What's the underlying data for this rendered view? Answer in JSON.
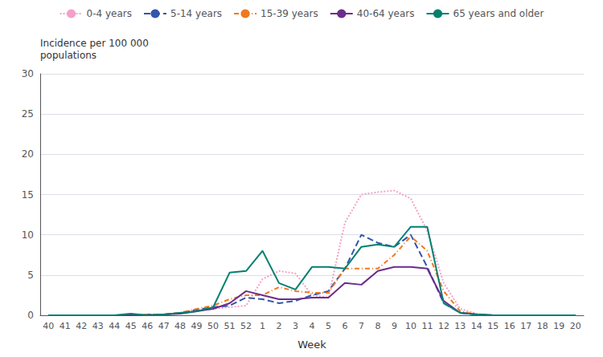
{
  "chart_data": {
    "type": "line",
    "xlabel": "Week",
    "ylabel": "Incidence per 100 000\npopulations",
    "categories": [
      "40",
      "41",
      "42",
      "43",
      "44",
      "45",
      "46",
      "47",
      "48",
      "49",
      "50",
      "51",
      "52",
      "1",
      "2",
      "3",
      "4",
      "5",
      "6",
      "7",
      "8",
      "9",
      "10",
      "11",
      "12",
      "13",
      "14",
      "15",
      "16",
      "17",
      "18",
      "19",
      "20"
    ],
    "series": [
      {
        "name": "0-4 years",
        "color": "#f4a0c8",
        "line_style": "dotted",
        "values": [
          0.0,
          0.0,
          0.0,
          0.0,
          0.0,
          0.1,
          0.0,
          0.1,
          0.2,
          0.5,
          0.8,
          1.0,
          1.2,
          4.5,
          5.5,
          5.2,
          2.5,
          2.2,
          11.5,
          15.0,
          15.3,
          15.5,
          14.5,
          10.5,
          4.0,
          0.8,
          0.2,
          0.0,
          0.0,
          0.0,
          0.0,
          0.0,
          0.0
        ]
      },
      {
        "name": "5-14 years",
        "color": "#3355aa",
        "line_style": "dashed",
        "values": [
          0.0,
          0.0,
          0.0,
          0.0,
          0.0,
          0.0,
          0.1,
          0.1,
          0.3,
          0.7,
          1.0,
          1.2,
          2.2,
          2.0,
          1.5,
          1.8,
          2.5,
          3.0,
          5.8,
          10.0,
          9.0,
          8.5,
          10.0,
          6.0,
          1.5,
          0.3,
          0.1,
          0.0,
          0.0,
          0.0,
          0.0,
          0.0,
          0.0
        ]
      },
      {
        "name": "15-39 years",
        "color": "#f07820",
        "line_style": "dashdot",
        "values": [
          0.0,
          0.0,
          0.0,
          0.0,
          0.0,
          0.0,
          0.1,
          0.1,
          0.3,
          0.8,
          1.2,
          2.0,
          2.5,
          2.5,
          3.5,
          3.0,
          2.8,
          2.8,
          5.8,
          5.8,
          5.8,
          7.5,
          9.8,
          8.0,
          3.0,
          0.5,
          0.1,
          0.0,
          0.0,
          0.0,
          0.0,
          0.0,
          0.0
        ]
      },
      {
        "name": "40-64 years",
        "color": "#6b2d8b",
        "line_style": "solid",
        "values": [
          0.0,
          0.0,
          0.0,
          0.0,
          0.0,
          0.0,
          0.0,
          0.1,
          0.2,
          0.5,
          0.8,
          1.5,
          3.0,
          2.5,
          2.0,
          2.0,
          2.2,
          2.2,
          4.0,
          3.8,
          5.5,
          6.0,
          6.0,
          5.8,
          1.8,
          0.3,
          0.1,
          0.0,
          0.0,
          0.0,
          0.0,
          0.0,
          0.0
        ]
      },
      {
        "name": "65 years and older",
        "color": "#008070",
        "line_style": "solid",
        "values": [
          0.0,
          0.0,
          0.0,
          0.0,
          0.0,
          0.2,
          0.0,
          0.1,
          0.3,
          0.5,
          1.0,
          5.3,
          5.5,
          8.0,
          4.0,
          3.2,
          6.0,
          6.0,
          5.8,
          8.5,
          8.8,
          8.5,
          11.0,
          11.0,
          1.5,
          0.3,
          0.1,
          0.0,
          0.0,
          0.0,
          0.0,
          0.0,
          0.0
        ]
      }
    ],
    "ylim": [
      0,
      30
    ],
    "yticks": [
      0,
      5,
      10,
      15,
      20,
      25,
      30
    ],
    "grid": true,
    "legend": "top"
  }
}
